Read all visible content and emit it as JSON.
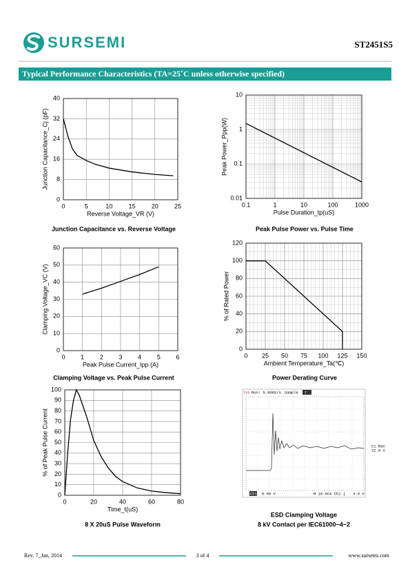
{
  "header": {
    "brand": "SURSEMI",
    "part": "ST2451S5"
  },
  "section_title": "Typical Performance Characteristics (TA=25˚C unless otherwise specified)",
  "chart_data": [
    {
      "type": "line",
      "title": "Junction Capacitance vs. Reverse Voltage",
      "x_label": "Reverse Voltage_VR (V)",
      "y_label": "Junction Capacitance_Cj (pF)",
      "x": [
        0,
        1,
        2,
        3,
        4,
        5,
        7,
        10,
        15,
        20,
        24
      ],
      "values": [
        32,
        25,
        20,
        17.5,
        16.5,
        15.5,
        14,
        12.5,
        11,
        10,
        9.5
      ],
      "color": "#000000",
      "xlim": [
        0,
        25
      ],
      "xticks": [
        0,
        5,
        10,
        15,
        20,
        25
      ],
      "ylim": [
        0,
        40
      ],
      "yticks": [
        0,
        8,
        16,
        24,
        32,
        40
      ],
      "grid": true
    },
    {
      "type": "line",
      "title": "Peak Pulse Power vs. Pulse Time",
      "x_label": "Pulse Duration_tp(uS)",
      "y_label": "Peak Power_Ppp(W)",
      "x": [
        0.1,
        1000
      ],
      "values": [
        1.5,
        0.03
      ],
      "color": "#000000",
      "xscale": "log",
      "yscale": "log",
      "xlim": [
        0.1,
        1000
      ],
      "xticks": [
        0.1,
        1,
        10,
        100,
        1000
      ],
      "ylim": [
        0.01,
        10
      ],
      "yticks": [
        0.01,
        0.1,
        1,
        10
      ],
      "grid": true,
      "minor_grid": true
    },
    {
      "type": "line",
      "title": "Clamping Voltage vs. Peak Pulse Current",
      "x_label": "Peak Pulse Current_Ipp (A)",
      "y_label": "Clamping Voltage_VC (V)",
      "x": [
        1,
        2,
        3,
        4,
        5
      ],
      "values": [
        33,
        36.5,
        40.5,
        44.5,
        49
      ],
      "color": "#000000",
      "xlim": [
        0,
        6
      ],
      "xticks": [
        0,
        1,
        2,
        3,
        4,
        5,
        6
      ],
      "ylim": [
        0,
        60
      ],
      "yticks": [
        0,
        10,
        20,
        30,
        40,
        50,
        60
      ],
      "grid": true
    },
    {
      "type": "line",
      "title": "Power Derating Curve",
      "x_label": "Ambient  Temperature_Ta(℃)",
      "y_label": "% of Rated Power",
      "x": [
        0,
        25,
        125,
        125
      ],
      "values": [
        100,
        100,
        20,
        0
      ],
      "color": "#000000",
      "xlim": [
        0,
        150
      ],
      "xticks": [
        0,
        25,
        50,
        75,
        100,
        125,
        150
      ],
      "ylim": [
        0,
        120
      ],
      "yticks": [
        0,
        20,
        40,
        60,
        80,
        100,
        120
      ],
      "grid": true,
      "minor_grid": true
    },
    {
      "type": "line",
      "title": "8 X 20uS Pulse Waveform",
      "x_label": "Time_t(uS)",
      "y_label": "% of Peak Pulse Current",
      "x": [
        0,
        2,
        4,
        6,
        8,
        10,
        15,
        20,
        25,
        30,
        35,
        40,
        50,
        60,
        70,
        80
      ],
      "values": [
        0,
        40,
        72,
        90,
        100,
        95,
        75,
        52,
        37,
        26,
        18,
        13,
        7,
        4,
        2.5,
        1.5
      ],
      "color": "#000000",
      "xlim": [
        0,
        80
      ],
      "xticks": [
        0,
        20,
        40,
        60,
        80
      ],
      "ylim": [
        0,
        100
      ],
      "yticks": [
        0,
        10,
        20,
        30,
        40,
        50,
        60,
        70,
        80,
        90,
        100
      ],
      "grid": true
    }
  ],
  "scope": {
    "brand": "Tek",
    "status": "Run: 5.00GS/s",
    "mode": "Sample",
    "trig_flag": "T",
    "readout_name": "C1 Max",
    "readout_value": "22.0 V",
    "ch_tag": "Ch1",
    "ch_scale": "5.00 V",
    "timebase": "M 10.0ns  Ch1 ∫",
    "trig_level": "3.0 V",
    "caption": "ESD Clamping Voltage",
    "subcaption": "8 kV Contact per IEC61000−4−2"
  },
  "footer": {
    "rev": "Rev. 7_Jan, 2014",
    "page": "3 of 4",
    "url": "www.sursemi.com"
  }
}
